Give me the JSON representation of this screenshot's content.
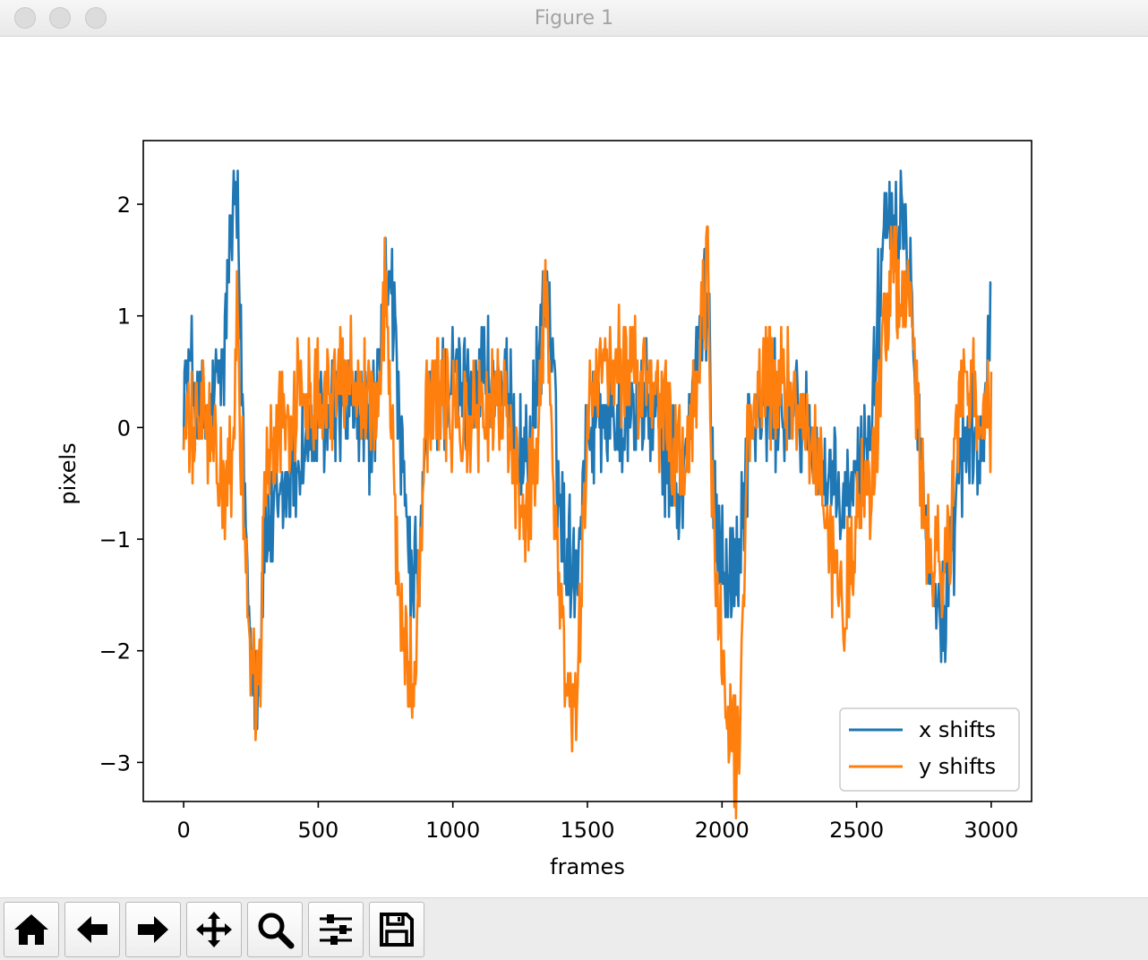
{
  "window": {
    "title": "Figure 1"
  },
  "toolbar": {
    "buttons": [
      {
        "name": "home-button",
        "icon": "home-icon",
        "label": "Home"
      },
      {
        "name": "back-button",
        "icon": "arrow-left-icon",
        "label": "Back"
      },
      {
        "name": "forward-button",
        "icon": "arrow-right-icon",
        "label": "Forward"
      },
      {
        "name": "pan-button",
        "icon": "move-icon",
        "label": "Pan"
      },
      {
        "name": "zoom-button",
        "icon": "magnifier-icon",
        "label": "Zoom"
      },
      {
        "name": "configure-subplots-button",
        "icon": "sliders-icon",
        "label": "Subplots"
      },
      {
        "name": "save-button",
        "icon": "floppy-disk-icon",
        "label": "Save"
      }
    ]
  },
  "chart_data": {
    "type": "line",
    "title": "",
    "xlabel": "frames",
    "ylabel": "pixels",
    "xlim": [
      -150,
      3150
    ],
    "ylim": [
      -3.35,
      2.57
    ],
    "xticks": [
      0,
      500,
      1000,
      1500,
      2000,
      2500,
      3000
    ],
    "xtick_labels": [
      "0",
      "500",
      "1000",
      "1500",
      "2000",
      "2500",
      "3000"
    ],
    "yticks": [
      -3,
      -2,
      -1,
      0,
      1,
      2
    ],
    "ytick_labels": [
      "−3",
      "−2",
      "−1",
      "0",
      "1",
      "2"
    ],
    "legend": {
      "position": "lower right",
      "entries": [
        "x shifts",
        "y shifts"
      ]
    },
    "series": [
      {
        "name": "x shifts",
        "color": "#1f77b4",
        "x": [
          0,
          30,
          60,
          90,
          120,
          150,
          170,
          190,
          200,
          210,
          230,
          250,
          270,
          285,
          300,
          330,
          360,
          400,
          450,
          500,
          550,
          600,
          650,
          700,
          730,
          750,
          770,
          800,
          830,
          850,
          880,
          900,
          950,
          1000,
          1050,
          1100,
          1150,
          1200,
          1230,
          1260,
          1300,
          1330,
          1350,
          1370,
          1400,
          1430,
          1460,
          1500,
          1550,
          1600,
          1650,
          1700,
          1750,
          1800,
          1850,
          1900,
          1950,
          1960,
          1990,
          2030,
          2060,
          2100,
          2150,
          2200,
          2250,
          2300,
          2350,
          2400,
          2450,
          2500,
          2550,
          2580,
          2600,
          2620,
          2650,
          2670,
          2700,
          2720,
          2750,
          2780,
          2800,
          2830,
          2850,
          2880,
          2920,
          2960,
          3000
        ],
        "values": [
          0.4,
          0.5,
          0.1,
          0.0,
          0.3,
          0.6,
          1.6,
          2.0,
          1.8,
          1.0,
          -0.8,
          -1.8,
          -2.3,
          -2.0,
          -1.0,
          -0.9,
          -0.7,
          -0.4,
          -0.2,
          0.0,
          0.1,
          0.2,
          0.1,
          0.0,
          0.5,
          1.3,
          1.5,
          0.0,
          -1.0,
          -1.5,
          -1.2,
          0.1,
          0.3,
          0.4,
          0.3,
          0.5,
          0.4,
          0.2,
          0.0,
          -0.3,
          0.0,
          0.9,
          1.4,
          0.5,
          -0.8,
          -1.1,
          -1.2,
          0.0,
          0.2,
          0.1,
          0.1,
          0.2,
          0.1,
          -0.3,
          -0.6,
          0.5,
          1.3,
          -0.2,
          -1.0,
          -1.4,
          -1.2,
          0.0,
          0.1,
          0.2,
          0.2,
          0.1,
          -0.2,
          -0.6,
          -0.7,
          -0.5,
          0.0,
          1.0,
          1.8,
          2.1,
          1.8,
          2.0,
          1.5,
          0.5,
          -0.6,
          -1.6,
          -1.4,
          -1.9,
          -1.3,
          -0.4,
          0.0,
          -0.4,
          1.2
        ]
      },
      {
        "name": "y shifts",
        "color": "#ff7f0e",
        "x": [
          0,
          30,
          60,
          90,
          120,
          150,
          180,
          190,
          200,
          210,
          230,
          250,
          270,
          285,
          300,
          330,
          360,
          400,
          450,
          500,
          550,
          600,
          650,
          700,
          730,
          750,
          770,
          800,
          830,
          850,
          880,
          900,
          950,
          1000,
          1050,
          1100,
          1150,
          1200,
          1230,
          1260,
          1300,
          1330,
          1350,
          1370,
          1400,
          1430,
          1460,
          1500,
          1550,
          1600,
          1650,
          1700,
          1750,
          1800,
          1850,
          1900,
          1950,
          1960,
          1990,
          2030,
          2060,
          2100,
          2150,
          2200,
          2250,
          2300,
          2350,
          2400,
          2450,
          2500,
          2550,
          2580,
          2600,
          2620,
          2650,
          2670,
          2700,
          2720,
          2750,
          2780,
          2800,
          2830,
          2850,
          2880,
          2920,
          2960,
          3000
        ],
        "values": [
          0.0,
          -0.1,
          0.1,
          0.0,
          -0.3,
          -0.6,
          -0.5,
          0.2,
          1.4,
          0.2,
          -1.2,
          -2.0,
          -2.4,
          -2.2,
          -0.5,
          -0.2,
          0.1,
          0.1,
          0.3,
          0.4,
          0.3,
          0.5,
          0.4,
          0.2,
          0.3,
          1.2,
          0.2,
          -1.4,
          -2.0,
          -2.4,
          -1.0,
          0.2,
          0.3,
          0.1,
          0.0,
          0.1,
          0.2,
          0.1,
          -0.3,
          -0.8,
          -0.5,
          0.6,
          1.5,
          -0.4,
          -1.6,
          -2.4,
          -2.6,
          0.2,
          0.4,
          0.5,
          0.6,
          0.4,
          0.2,
          0.0,
          -0.4,
          0.1,
          1.5,
          -0.5,
          -1.8,
          -2.7,
          -3.0,
          0.1,
          0.3,
          0.4,
          0.3,
          0.2,
          -0.3,
          -1.0,
          -1.7,
          -0.8,
          -0.5,
          0.2,
          0.8,
          1.2,
          1.4,
          1.0,
          1.2,
          0.3,
          -0.8,
          -1.4,
          -1.1,
          -1.4,
          -0.8,
          0.2,
          0.4,
          0.0,
          0.1
        ]
      }
    ]
  }
}
